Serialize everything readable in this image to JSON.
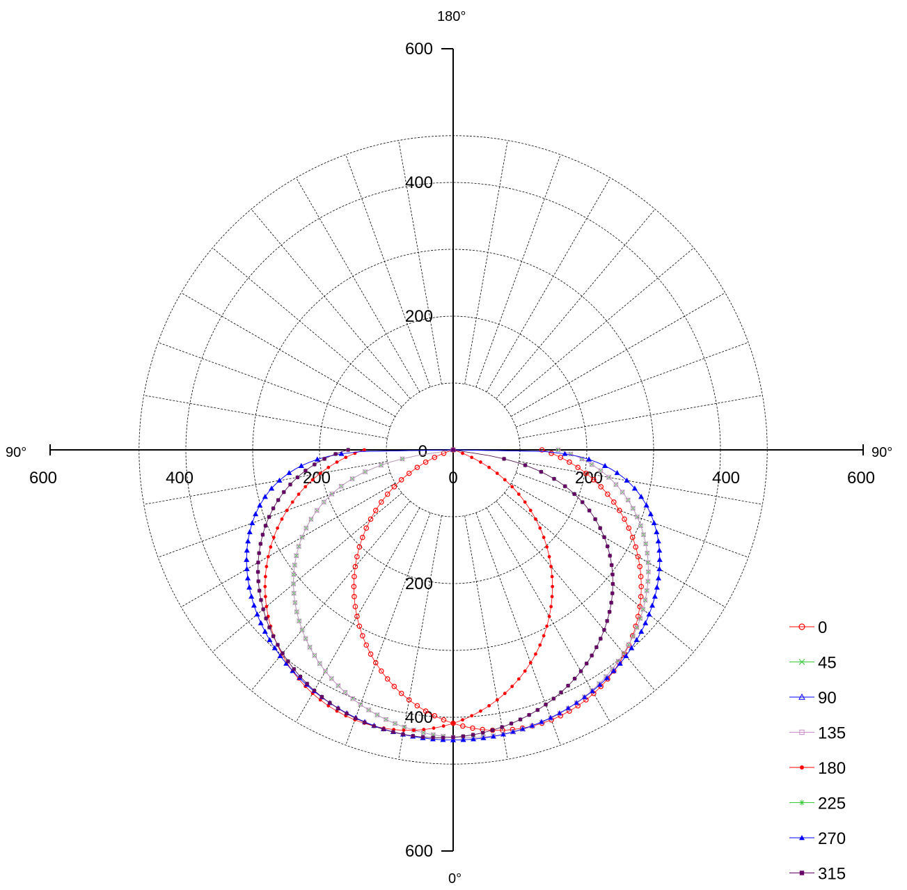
{
  "chart_data": {
    "type": "polar-line",
    "title": "",
    "radial_unit": "",
    "angle_labels": {
      "top": "180°",
      "left": "90°",
      "right": "90°",
      "bottom": "0°"
    },
    "axis_ticks": {
      "up": [
        "600",
        "400",
        "200"
      ],
      "down": [
        "200",
        "400",
        "600"
      ],
      "left": [
        "600",
        "400",
        "200"
      ],
      "right": [
        "200",
        "400",
        "600"
      ],
      "center": "0"
    },
    "radial_range": [
      0,
      600
    ],
    "rings": [
      100,
      200,
      300,
      400,
      470
    ],
    "spoke_step_deg": 10,
    "grid": true,
    "legend": {
      "placement": "bottom-right"
    },
    "series": [
      {
        "name": "0",
        "color": "#ff0000",
        "marker": "open-circle",
        "fwhm_deg": 120,
        "peak": 430,
        "skew_deg": 18
      },
      {
        "name": "45",
        "color": "#33cc33",
        "marker": "x",
        "fwhm_deg": 150,
        "peak": 432,
        "skew_deg": 8
      },
      {
        "name": "90",
        "color": "#0000ff",
        "marker": "open-triangle",
        "fwhm_deg": 170,
        "peak": 434,
        "skew_deg": 0
      },
      {
        "name": "135",
        "color": "#cc88cc",
        "marker": "open-square",
        "fwhm_deg": 150,
        "peak": 432,
        "skew_deg": 8
      },
      {
        "name": "180",
        "color": "#ff0000",
        "marker": "dot",
        "fwhm_deg": 120,
        "peak": 430,
        "skew_deg": -18
      },
      {
        "name": "225",
        "color": "#33cc33",
        "marker": "star",
        "fwhm_deg": 150,
        "peak": 432,
        "skew_deg": -8
      },
      {
        "name": "270",
        "color": "#0000ff",
        "marker": "triangle",
        "fwhm_deg": 170,
        "peak": 434,
        "skew_deg": 0
      },
      {
        "name": "315",
        "color": "#660066",
        "marker": "square",
        "fwhm_deg": 150,
        "peak": 432,
        "skew_deg": -8
      }
    ]
  }
}
